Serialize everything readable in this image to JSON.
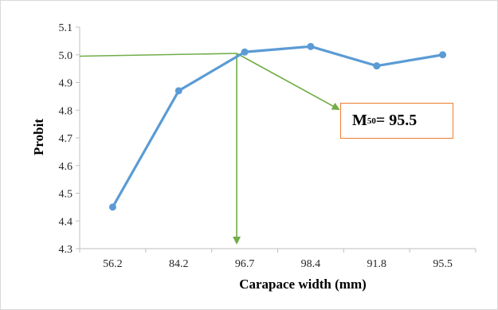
{
  "chart_data": {
    "type": "line",
    "xlabel": "Carapace width (mm)",
    "ylabel": "Probit",
    "categories": [
      "56.2",
      "84.2",
      "96.7",
      "98.4",
      "91.8",
      "95.5"
    ],
    "series": [
      {
        "values": [
          4.45,
          4.87,
          5.01,
          5.03,
          4.96,
          5.0
        ]
      }
    ],
    "ylim": [
      4.3,
      5.1
    ],
    "yticks": [
      "4.3",
      "4.4",
      "4.5",
      "4.6",
      "4.7",
      "4.8",
      "4.9",
      "5.0",
      "5.1"
    ],
    "grid": false,
    "annotation": {
      "label_main": "M",
      "label_sub": "50",
      "label_value": "= 95.5",
      "border_color": "#ed7d31"
    },
    "colors": {
      "series": "#5b9bd5",
      "annotation_lines": "#70ad47",
      "axis": "#bfbfbf"
    }
  }
}
